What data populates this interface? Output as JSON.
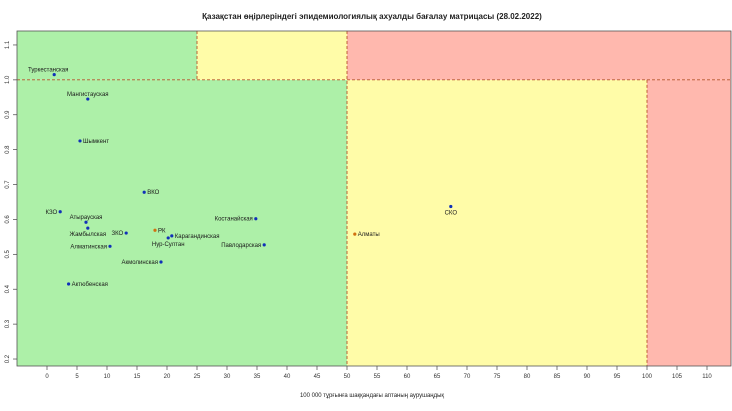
{
  "chart_data": {
    "type": "scatter",
    "title": "Қазақстан өңірлеріндегі эпидемиологиялық ахуалды бағалау матрицасы  (28.02.2022)",
    "xlabel": "100 000 тұрғынға шаққандағы аптаның аурушаңдық",
    "ylabel": "",
    "xlim": [
      -5,
      114
    ],
    "ylim": [
      0.18,
      1.14
    ],
    "xticks": [
      0,
      5,
      10,
      15,
      20,
      25,
      30,
      35,
      40,
      45,
      50,
      55,
      60,
      65,
      70,
      75,
      80,
      85,
      90,
      95,
      100,
      105,
      110
    ],
    "yticks": [
      0.2,
      0.3,
      0.4,
      0.5,
      0.6,
      0.7,
      0.8,
      0.9,
      1.0,
      1.1
    ],
    "ytick_labels": [
      "0.2",
      "0.3",
      "0.4",
      "0.5",
      "0.6",
      "0.7",
      "0.8",
      "0.9",
      "1.0",
      "1.1"
    ],
    "zones": [
      {
        "x0": -5,
        "x1": 50,
        "y0": 0.18,
        "y1": 1.0,
        "color": "#adf0a8"
      },
      {
        "x0": -5,
        "x1": 25,
        "y0": 1.0,
        "y1": 1.14,
        "color": "#adf0a8"
      },
      {
        "x0": 25,
        "x1": 50,
        "y0": 1.0,
        "y1": 1.14,
        "color": "#fffca8"
      },
      {
        "x0": 50,
        "x1": 100,
        "y0": 0.18,
        "y1": 1.0,
        "color": "#fffca8"
      },
      {
        "x0": 50,
        "x1": 114,
        "y0": 1.0,
        "y1": 1.14,
        "color": "#ffb8ae"
      },
      {
        "x0": 100,
        "x1": 114,
        "y0": 0.18,
        "y1": 1.0,
        "color": "#ffb8ae"
      }
    ],
    "threshold_lines": {
      "vertical": [
        {
          "x": 25,
          "y0": 1.0,
          "y1": 1.14
        },
        {
          "x": 50,
          "y0": 0.18,
          "y1": 1.14
        },
        {
          "x": 100,
          "y0": 0.18,
          "y1": 1.0
        }
      ],
      "horizontal": [
        {
          "y": 1.0,
          "x0": -5,
          "x1": 114
        }
      ],
      "color": "#b8542c"
    },
    "points": [
      {
        "label": "Туркестанская",
        "x": 1.2,
        "y": 1.015,
        "color": "#1030b8",
        "label_pos": "above-left"
      },
      {
        "label": "Мангистауская",
        "x": 6.8,
        "y": 0.945,
        "color": "#1030b8",
        "label_pos": "above-center"
      },
      {
        "label": "Шымкент",
        "x": 5.5,
        "y": 0.825,
        "color": "#1030b8",
        "label_pos": "right"
      },
      {
        "label": "ВКО",
        "x": 16.2,
        "y": 0.678,
        "color": "#1030b8",
        "label_pos": "right"
      },
      {
        "label": "КЗО",
        "x": 2.2,
        "y": 0.622,
        "color": "#1030b8",
        "label_pos": "left"
      },
      {
        "label": "Атырауская",
        "x": 6.5,
        "y": 0.592,
        "color": "#1030b8",
        "label_pos": "above-center"
      },
      {
        "label": "Жамбылская",
        "x": 6.8,
        "y": 0.575,
        "color": "#1030b8",
        "label_pos": "below-center"
      },
      {
        "label": "ЗКО",
        "x": 13.2,
        "y": 0.561,
        "color": "#1030b8",
        "label_pos": "left"
      },
      {
        "label": "РК",
        "x": 18.0,
        "y": 0.569,
        "color": "#d07010",
        "label_pos": "right"
      },
      {
        "label": "Карагандинская",
        "x": 20.8,
        "y": 0.553,
        "color": "#1030b8",
        "label_pos": "right"
      },
      {
        "label": "Нур-Султан",
        "x": 20.2,
        "y": 0.547,
        "color": "#1030b8",
        "label_pos": "below-center"
      },
      {
        "label": "Костанайская",
        "x": 34.8,
        "y": 0.602,
        "color": "#1030b8",
        "label_pos": "left"
      },
      {
        "label": "Павлодарская",
        "x": 36.2,
        "y": 0.527,
        "color": "#1030b8",
        "label_pos": "left"
      },
      {
        "label": "Алматинская",
        "x": 10.5,
        "y": 0.523,
        "color": "#1030b8",
        "label_pos": "left"
      },
      {
        "label": "Акмолинская",
        "x": 19.0,
        "y": 0.478,
        "color": "#1030b8",
        "label_pos": "left"
      },
      {
        "label": "Актюбенская",
        "x": 3.6,
        "y": 0.415,
        "color": "#1030b8",
        "label_pos": "right"
      },
      {
        "label": "Алматы",
        "x": 51.3,
        "y": 0.558,
        "color": "#d07010",
        "label_pos": "right"
      },
      {
        "label": "СКО",
        "x": 67.3,
        "y": 0.637,
        "color": "#1030b8",
        "label_pos": "below-center"
      }
    ]
  }
}
